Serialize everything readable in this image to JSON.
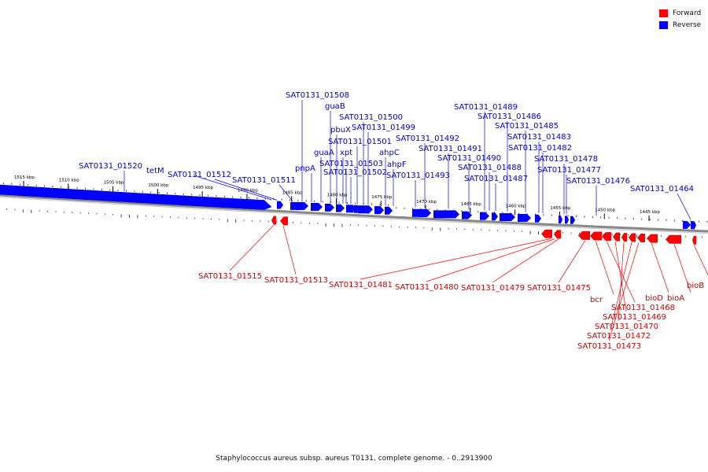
{
  "legend": {
    "forward_label": "Forward",
    "reverse_label": "Reverse",
    "forward_color": "#ff0000",
    "reverse_color": "#0000ff"
  },
  "caption": "Staphylococcus aureus subsp. aureus T0131, complete genome. - 0..2913900",
  "scale": {
    "unit": "kbp",
    "ticks": [
      {
        "kbp": 1515,
        "label": "1515 kbp"
      },
      {
        "kbp": 1510,
        "label": "1510 kbp"
      },
      {
        "kbp": 1505,
        "label": "1505 kbp"
      },
      {
        "kbp": 1500,
        "label": "1500 kbp"
      },
      {
        "kbp": 1495,
        "label": "1495 kbp"
      },
      {
        "kbp": 1490,
        "label": "1490 kbp"
      },
      {
        "kbp": 1485,
        "label": "1485 kbp"
      },
      {
        "kbp": 1480,
        "label": "1480 kbp"
      },
      {
        "kbp": 1475,
        "label": "1475 kbp"
      },
      {
        "kbp": 1470,
        "label": "1470 kbp"
      },
      {
        "kbp": 1465,
        "label": "1465 kbp"
      },
      {
        "kbp": 1460,
        "label": "1460 kbp"
      },
      {
        "kbp": 1455,
        "label": "1455 kbp"
      },
      {
        "kbp": 1450,
        "label": "1450 kbp"
      },
      {
        "kbp": 1445,
        "label": "1445 kbp"
      }
    ]
  },
  "reverse_genes": [
    {
      "label": "SAT0131_01520"
    },
    {
      "label": "tetM"
    },
    {
      "label": "SAT0131_01512"
    },
    {
      "label": "SAT0131_01511"
    },
    {
      "label": "pnpA"
    },
    {
      "label": "guaA"
    },
    {
      "label": "SAT0131_01508"
    },
    {
      "label": "guaB"
    },
    {
      "label": "pbuX"
    },
    {
      "label": "xpt"
    },
    {
      "label": "SAT0131_01503"
    },
    {
      "label": "SAT0131_01502"
    },
    {
      "label": "SAT0131_01501"
    },
    {
      "label": "SAT0131_01500"
    },
    {
      "label": "SAT0131_01499"
    },
    {
      "label": "ahpC"
    },
    {
      "label": "ahpF"
    },
    {
      "label": "SAT0131_01493"
    },
    {
      "label": "SAT0131_01492"
    },
    {
      "label": "SAT0131_01491"
    },
    {
      "label": "SAT0131_01490"
    },
    {
      "label": "SAT0131_01489"
    },
    {
      "label": "SAT0131_01488"
    },
    {
      "label": "SAT0131_01487"
    },
    {
      "label": "SAT0131_01486"
    },
    {
      "label": "SAT0131_01485"
    },
    {
      "label": "SAT0131_01483"
    },
    {
      "label": "SAT0131_01482"
    },
    {
      "label": "SAT0131_01478"
    },
    {
      "label": "SAT0131_01477"
    },
    {
      "label": "SAT0131_01476"
    },
    {
      "label": "SAT0131_01464"
    }
  ],
  "forward_genes": [
    {
      "label": "SAT0131_01515"
    },
    {
      "label": "SAT0131_01513"
    },
    {
      "label": "SAT0131_01481"
    },
    {
      "label": "SAT0131_01480"
    },
    {
      "label": "SAT0131_01479"
    },
    {
      "label": "SAT0131_01475"
    },
    {
      "label": "bcr"
    },
    {
      "label": "SAT0131_01468"
    },
    {
      "label": "SAT0131_01469"
    },
    {
      "label": "SAT0131_01470"
    },
    {
      "label": "SAT0131_01472"
    },
    {
      "label": "SAT0131_01473"
    },
    {
      "label": "bioD"
    },
    {
      "label": "bioA"
    },
    {
      "label": "bioB"
    }
  ]
}
